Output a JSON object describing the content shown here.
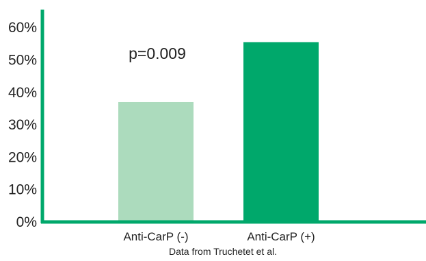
{
  "chart_data": {
    "type": "bar",
    "categories": [
      "Anti-CarP (-)",
      "Anti-CarP (+)"
    ],
    "values": [
      37,
      55.5
    ],
    "value_format": "percent",
    "y_ticks": [
      "0%",
      "10%",
      "20%",
      "30%",
      "40%",
      "50%",
      "60%"
    ],
    "ylim": [
      0,
      65
    ],
    "grid": false,
    "legend": "none",
    "annotation": "p=0.009",
    "caption": "Data from Truchetet et al.",
    "title": "",
    "xlabel": "",
    "ylabel": "",
    "colors": {
      "axis": "#00a86b",
      "bars": [
        "#acdbbd",
        "#00a86b"
      ]
    }
  }
}
